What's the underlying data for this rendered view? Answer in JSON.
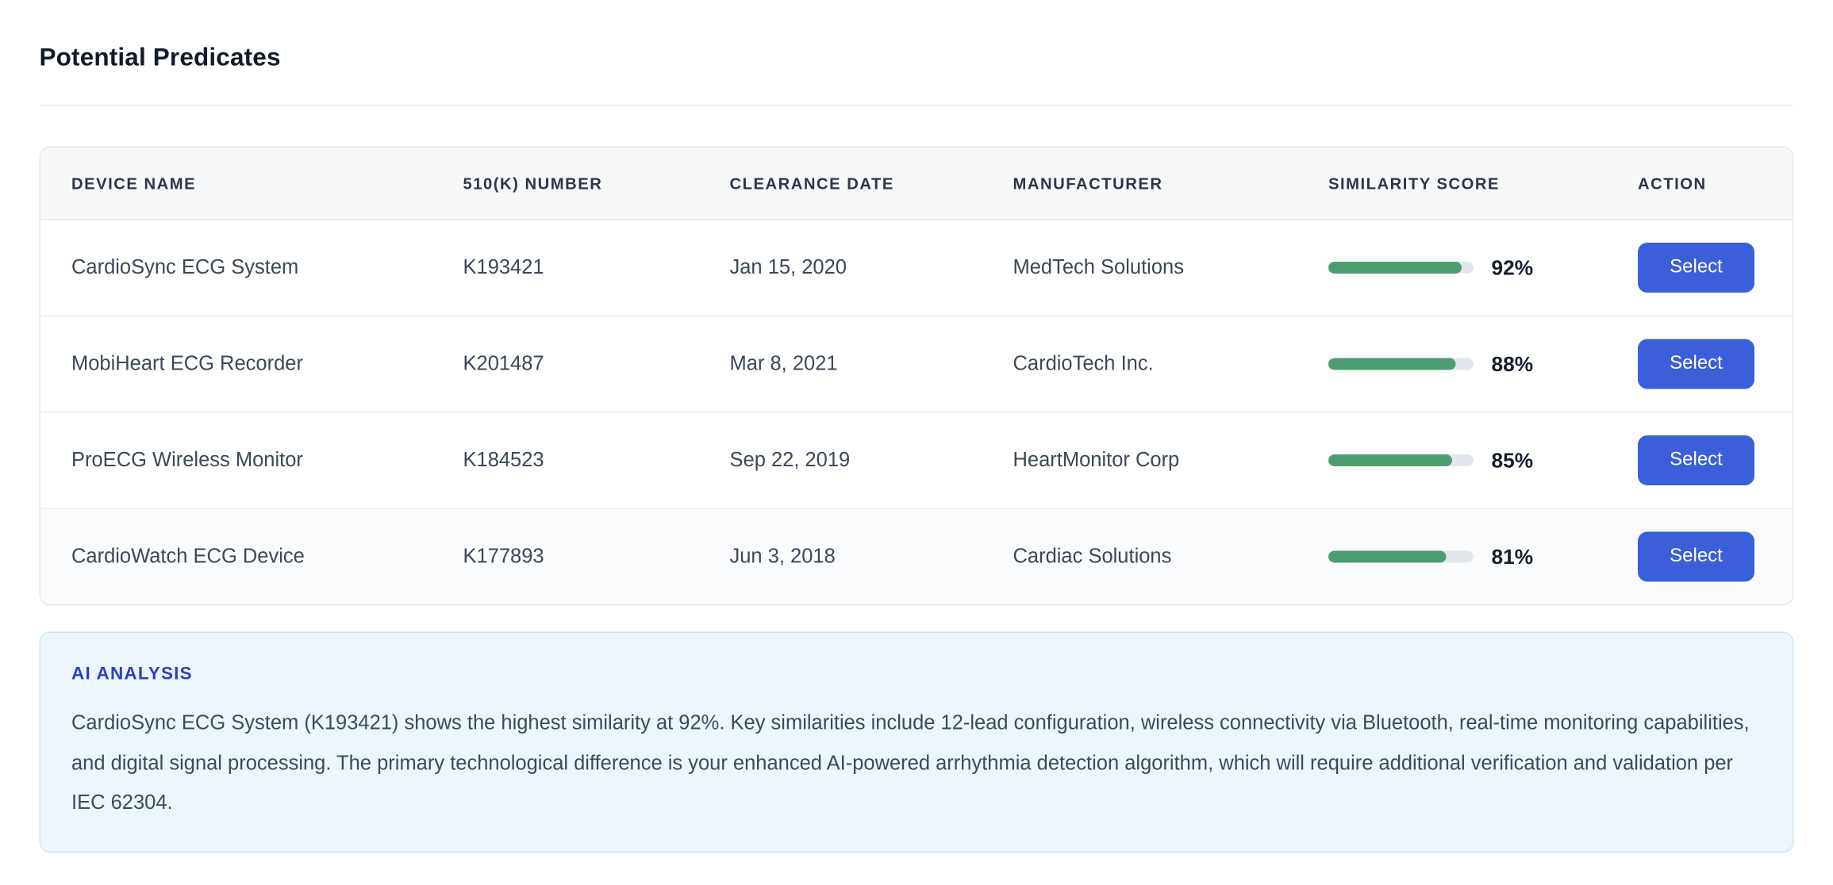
{
  "page": {
    "title": "Potential Predicates"
  },
  "table": {
    "columns": [
      "DEVICE NAME",
      "510(K) NUMBER",
      "CLEARANCE DATE",
      "MANUFACTURER",
      "SIMILARITY SCORE",
      "ACTION"
    ],
    "select_label": "Select",
    "rows": [
      {
        "device_name": "CardioSync ECG System",
        "k_number": "K193421",
        "clearance_date": "Jan 15, 2020",
        "manufacturer": "MedTech Solutions",
        "similarity_percent": 92,
        "similarity_label": "92%"
      },
      {
        "device_name": "MobiHeart ECG Recorder",
        "k_number": "K201487",
        "clearance_date": "Mar 8, 2021",
        "manufacturer": "CardioTech Inc.",
        "similarity_percent": 88,
        "similarity_label": "88%"
      },
      {
        "device_name": "ProECG Wireless Monitor",
        "k_number": "K184523",
        "clearance_date": "Sep 22, 2019",
        "manufacturer": "HeartMonitor Corp",
        "similarity_percent": 85,
        "similarity_label": "85%"
      },
      {
        "device_name": "CardioWatch ECG Device",
        "k_number": "K177893",
        "clearance_date": "Jun 3, 2018",
        "manufacturer": "Cardiac Solutions",
        "similarity_percent": 81,
        "similarity_label": "81%"
      }
    ]
  },
  "ai_analysis": {
    "heading": "AI ANALYSIS",
    "body": "CardioSync ECG System (K193421) shows the highest similarity at 92%. Key similarities include 12-lead configuration, wireless connectivity via Bluetooth, real-time monitoring capabilities, and digital signal processing. The primary technological difference is your enhanced AI-powered arrhythmia detection algorithm, which will require additional verification and validation per IEC 62304."
  },
  "colors": {
    "accent_blue": "#3b5fd9",
    "progress_green": "#4c9d6f",
    "progress_track": "#e3e7eb",
    "ai_heading_blue": "#2840c2",
    "ai_box_bg": "#ecf6fc",
    "ai_box_border": "#cde6f2"
  }
}
